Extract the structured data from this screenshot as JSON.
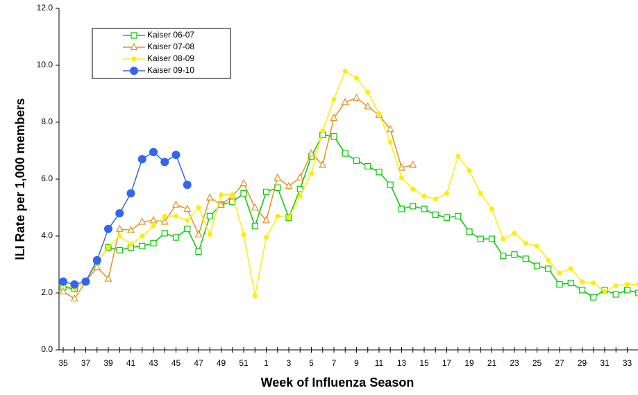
{
  "chart_data": {
    "type": "line",
    "x_label": "Week of Influenza Season",
    "y_label": "ILI Rate per 1,000 members",
    "categories": [
      "35",
      null,
      "37",
      null,
      "39",
      null,
      "41",
      null,
      "43",
      null,
      "45",
      null,
      "47",
      null,
      "49",
      null,
      "51",
      null,
      "1",
      null,
      "3",
      null,
      "5",
      null,
      "7",
      null,
      "9",
      null,
      "11",
      null,
      "13",
      null,
      "15",
      null,
      "17",
      null,
      "19",
      null,
      "21",
      null,
      "23",
      null,
      "25",
      null,
      "27",
      null,
      "29",
      null,
      "31",
      null,
      "33",
      null
    ],
    "ylim": [
      0,
      12
    ],
    "yticks": [
      {
        "value": 0,
        "label": "0.0"
      },
      {
        "value": 2,
        "label": "2.0"
      },
      {
        "value": 4,
        "label": "4.0"
      },
      {
        "value": 6,
        "label": "6.0"
      },
      {
        "value": 8,
        "label": "8.0"
      },
      {
        "value": 10,
        "label": "10.0"
      },
      {
        "value": 12,
        "label": "12.0"
      }
    ],
    "legend": "upper left",
    "series": [
      {
        "name": "Kaiser 06-07",
        "color": "#00cc00",
        "marker": "square",
        "values": [
          2.2,
          2.15,
          2.4,
          3.1,
          3.6,
          3.5,
          3.6,
          3.65,
          3.75,
          4.1,
          3.95,
          4.25,
          3.45,
          4.7,
          5.1,
          5.2,
          5.5,
          4.35,
          5.55,
          5.7,
          4.65,
          5.65,
          6.8,
          7.55,
          7.5,
          6.9,
          6.65,
          6.45,
          6.25,
          5.8,
          4.95,
          5.05,
          4.95,
          4.75,
          4.65,
          4.7,
          4.15,
          3.9,
          3.9,
          3.3,
          3.35,
          3.2,
          2.95,
          2.85,
          2.3,
          2.35,
          2.1,
          1.85,
          2.1,
          1.95,
          2.1,
          2.0
        ]
      },
      {
        "name": "Kaiser 07-08",
        "color": "#e8901a",
        "marker": "triangle",
        "values": [
          2.05,
          1.8,
          2.4,
          2.9,
          2.5,
          4.25,
          4.2,
          4.5,
          4.55,
          4.5,
          5.1,
          4.95,
          4.05,
          5.35,
          5.1,
          5.4,
          5.85,
          5.0,
          4.55,
          6.05,
          5.75,
          6.05,
          6.9,
          6.5,
          8.15,
          8.7,
          8.85,
          8.55,
          8.25,
          7.75,
          6.4,
          6.5,
          null,
          null,
          null,
          null,
          null,
          null,
          null,
          null,
          null,
          null,
          null,
          null,
          null,
          null,
          null,
          null,
          null,
          null,
          null,
          null
        ]
      },
      {
        "name": "Kaiser 08-09",
        "color": "#ffee00",
        "marker": "circle",
        "values": [
          2.3,
          2.15,
          2.4,
          3.1,
          3.6,
          4.0,
          3.7,
          4.0,
          4.35,
          4.7,
          4.7,
          4.55,
          5.0,
          4.05,
          5.45,
          5.45,
          4.05,
          1.9,
          3.95,
          4.7,
          4.65,
          5.4,
          6.2,
          7.7,
          8.8,
          9.8,
          9.55,
          9.05,
          8.3,
          7.3,
          6.05,
          5.65,
          5.4,
          5.3,
          5.5,
          6.8,
          6.3,
          5.5,
          4.95,
          3.9,
          4.1,
          3.75,
          3.65,
          3.15,
          2.7,
          2.85,
          2.4,
          2.35,
          2.05,
          2.25,
          2.3,
          2.3
        ]
      },
      {
        "name": "Kaiser 09-10",
        "color": "#3366ee",
        "marker": "big-circle",
        "values": [
          2.4,
          2.3,
          2.4,
          3.15,
          4.25,
          4.8,
          5.5,
          6.7,
          6.95,
          6.6,
          6.85,
          5.8,
          null,
          null,
          null,
          null,
          null,
          null,
          null,
          null,
          null,
          null,
          null,
          null,
          null,
          null,
          null,
          null,
          null,
          null,
          null,
          null,
          null,
          null,
          null,
          null,
          null,
          null,
          null,
          null,
          null,
          null,
          null,
          null,
          null,
          null,
          null,
          null,
          null,
          null,
          null,
          null
        ]
      }
    ]
  }
}
